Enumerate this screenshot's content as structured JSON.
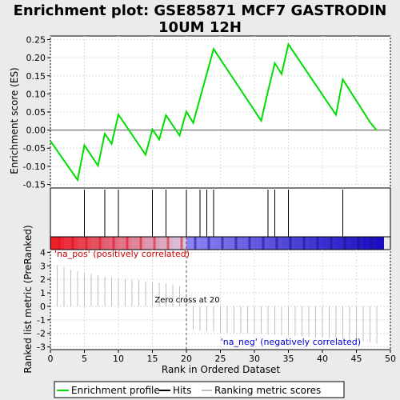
{
  "title_line1": "Enrichment plot: GSE85871 MCF7 GASTRODIN",
  "title_line2": "10UM 12H",
  "colors": {
    "background": "#ebebeb",
    "es_line": "#00dd00",
    "hits": "#000000",
    "metric": "#c0c0c0",
    "pos_label": "#cc0000",
    "neg_label": "#0000cc",
    "zero_line": "#555555",
    "grid": "#dddddd"
  },
  "chart_data": [
    {
      "type": "line",
      "name": "enrichment-score",
      "ylabel": "Enrichment score (ES)",
      "xlim": [
        0,
        50
      ],
      "ylim": [
        -0.16,
        0.26
      ],
      "yticks": [
        -0.15,
        -0.1,
        -0.05,
        0.0,
        0.05,
        0.1,
        0.15,
        0.2,
        0.25
      ],
      "ytick_labels": [
        "-0.15",
        "-0.10",
        "-0.05",
        "0.00",
        "0.05",
        "0.10",
        "0.15",
        "0.20",
        "0.25"
      ],
      "grid": true,
      "points": [
        [
          0,
          -0.03
        ],
        [
          4,
          -0.138
        ],
        [
          5,
          -0.042
        ],
        [
          7,
          -0.098
        ],
        [
          8,
          -0.01
        ],
        [
          9,
          -0.038
        ],
        [
          10,
          0.043
        ],
        [
          14,
          -0.068
        ],
        [
          15,
          0.002
        ],
        [
          16,
          -0.026
        ],
        [
          17,
          0.041
        ],
        [
          19,
          -0.015
        ],
        [
          20,
          0.051
        ],
        [
          21,
          0.02
        ],
        [
          24,
          0.224
        ],
        [
          31,
          0.026
        ],
        [
          32,
          0.108
        ],
        [
          33,
          0.185
        ],
        [
          34,
          0.155
        ],
        [
          35,
          0.237
        ],
        [
          42,
          0.042
        ],
        [
          43,
          0.14
        ],
        [
          47,
          0.022
        ],
        [
          48,
          -0.001
        ]
      ]
    },
    {
      "type": "hits",
      "name": "hits",
      "x": [
        5,
        8,
        10,
        15,
        17,
        20,
        22,
        23,
        24,
        32,
        33,
        35,
        43
      ]
    },
    {
      "type": "bar",
      "name": "ranked-list-metric",
      "ylabel": "Ranked list metric (PreRanked)",
      "xlabel": "Rank in Ordered Dataset",
      "xlim": [
        0,
        50
      ],
      "ylim": [
        -3.2,
        4.2
      ],
      "xticks": [
        0,
        5,
        10,
        15,
        20,
        25,
        30,
        35,
        40,
        45,
        50
      ],
      "yticks": [
        -3,
        -2,
        -1,
        0,
        1,
        2,
        3,
        4
      ],
      "grid": true,
      "x": [
        1,
        2,
        3,
        4,
        5,
        6,
        7,
        8,
        9,
        10,
        11,
        12,
        13,
        14,
        15,
        16,
        17,
        18,
        19,
        20,
        21,
        22,
        23,
        24,
        25,
        26,
        27,
        28,
        29,
        30,
        31,
        32,
        33,
        34,
        35,
        36,
        37,
        38,
        39,
        40,
        41,
        42,
        43,
        44,
        45,
        46,
        47,
        48
      ],
      "values": [
        3.0,
        2.85,
        2.7,
        2.6,
        2.5,
        2.4,
        2.3,
        2.2,
        2.15,
        2.1,
        2.05,
        2.0,
        1.95,
        1.85,
        1.8,
        1.75,
        1.7,
        1.6,
        1.5,
        0.3,
        -1.75,
        -1.8,
        -1.85,
        -1.9,
        -1.95,
        -1.95,
        -2.0,
        -2.0,
        -2.0,
        -2.05,
        -2.05,
        -2.1,
        -2.1,
        -2.15,
        -2.15,
        -2.2,
        -2.2,
        -2.25,
        -2.3,
        -2.3,
        -2.35,
        -2.4,
        -2.45,
        -2.5,
        -2.55,
        -2.6,
        -2.65,
        -2.75
      ],
      "zero_cross_label": "Zero cross at 20",
      "zero_cross_x": 20,
      "pos_label": "'na_pos' (positively correlated)",
      "neg_label": "'na_neg' (negatively correlated)"
    }
  ],
  "legend": {
    "items": [
      {
        "label": "Enrichment profile",
        "color": "#00dd00"
      },
      {
        "label": "Hits",
        "color": "#000000"
      },
      {
        "label": "Ranking metric scores",
        "color": "#c0c0c0"
      }
    ]
  }
}
